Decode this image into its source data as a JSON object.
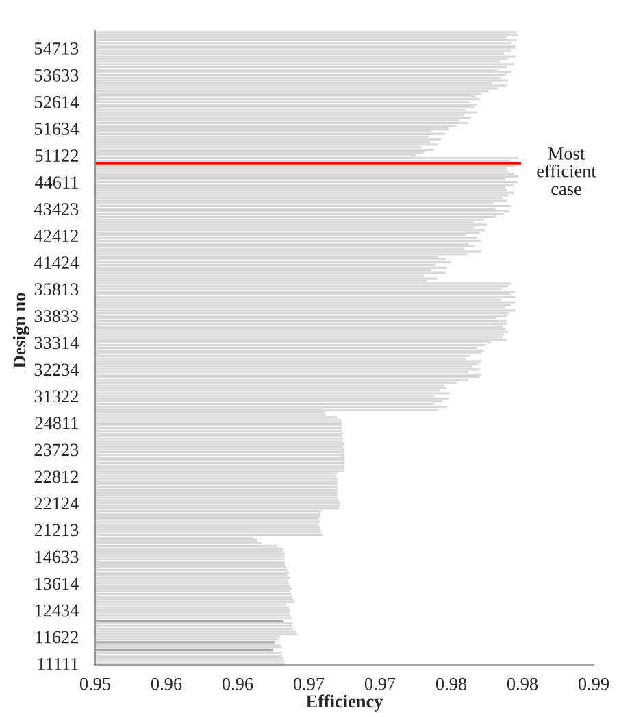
{
  "chart_data": {
    "type": "bar",
    "orientation": "horizontal",
    "xlabel": "Efficiency",
    "ylabel": "Design no",
    "categories": [
      null,
      null,
      null,
      null,
      null,
      null,
      "54713",
      null,
      null,
      null,
      null,
      null,
      null,
      null,
      null,
      null,
      "53633",
      null,
      null,
      null,
      null,
      null,
      null,
      null,
      null,
      null,
      "52614",
      null,
      null,
      null,
      null,
      null,
      null,
      null,
      null,
      null,
      "51634",
      null,
      null,
      null,
      null,
      null,
      null,
      null,
      null,
      null,
      "51122",
      null,
      null,
      null,
      null,
      null,
      null,
      null,
      null,
      null,
      "44611",
      null,
      null,
      null,
      null,
      null,
      null,
      null,
      null,
      null,
      "43423",
      null,
      null,
      null,
      null,
      null,
      null,
      null,
      null,
      null,
      "42412",
      null,
      null,
      null,
      null,
      null,
      null,
      null,
      null,
      null,
      "41424",
      null,
      null,
      null,
      null,
      null,
      null,
      null,
      null,
      null,
      "35813",
      null,
      null,
      null,
      null,
      null,
      null,
      null,
      null,
      null,
      "33833",
      null,
      null,
      null,
      null,
      null,
      null,
      null,
      null,
      null,
      "33314",
      null,
      null,
      null,
      null,
      null,
      null,
      null,
      null,
      null,
      "32234",
      null,
      null,
      null,
      null,
      null,
      null,
      null,
      null,
      null,
      "31322",
      null,
      null,
      null,
      null,
      null,
      null,
      null,
      null,
      null,
      "24811",
      null,
      null,
      null,
      null,
      null,
      null,
      null,
      null,
      null,
      "23723",
      null,
      null,
      null,
      null,
      null,
      null,
      null,
      null,
      null,
      "22812",
      null,
      null,
      null,
      null,
      null,
      null,
      null,
      null,
      null,
      "22124",
      null,
      null,
      null,
      null,
      null,
      null,
      null,
      null,
      null,
      "21213",
      null,
      null,
      null,
      null,
      null,
      null,
      null,
      null,
      null,
      "14633",
      null,
      null,
      null,
      null,
      null,
      null,
      null,
      null,
      null,
      "13614",
      null,
      null,
      null,
      null,
      null,
      null,
      null,
      null,
      null,
      "12434",
      null,
      null,
      null,
      null,
      null,
      null,
      null,
      null,
      null,
      "11622",
      null,
      null,
      null,
      null,
      null,
      null,
      null,
      null,
      null,
      "11111"
    ],
    "values": [
      0.9796,
      0.9797,
      0.9789,
      0.9796,
      0.9792,
      0.9795,
      0.9795,
      0.9792,
      0.9787,
      0.9795,
      0.979,
      0.9784,
      0.9794,
      0.9789,
      0.9783,
      0.9792,
      0.9789,
      0.9785,
      0.979,
      0.9779,
      0.9789,
      0.9783,
      0.9776,
      0.9771,
      0.9767,
      0.977,
      0.9763,
      0.9768,
      0.9766,
      0.976,
      0.9768,
      0.9759,
      0.9764,
      0.9756,
      0.9762,
      0.9754,
      0.9748,
      0.9736,
      0.9746,
      0.9734,
      0.9743,
      0.9735,
      0.9741,
      0.9729,
      0.9738,
      0.9731,
      0.9725,
      0.9797,
      0.9792,
      0.9799,
      0.9795,
      0.9789,
      0.979,
      0.9794,
      0.9797,
      0.9788,
      0.9797,
      0.9794,
      0.9788,
      0.9789,
      0.9794,
      0.979,
      0.9786,
      0.9789,
      0.978,
      0.9792,
      0.9781,
      0.9791,
      0.9787,
      0.9782,
      0.9773,
      0.9766,
      0.9775,
      0.9766,
      0.9774,
      0.977,
      0.976,
      0.9768,
      0.9771,
      0.9762,
      0.9766,
      0.9759,
      0.9771,
      0.9761,
      0.9741,
      0.9746,
      0.975,
      0.9739,
      0.9747,
      0.9736,
      0.9746,
      0.9731,
      0.974,
      0.9733,
      0.9792,
      0.979,
      0.9785,
      0.9795,
      0.9792,
      0.9795,
      0.9785,
      0.9795,
      0.9792,
      0.9788,
      0.9795,
      0.9791,
      0.9789,
      0.9782,
      0.9789,
      0.9789,
      0.9786,
      0.9788,
      0.979,
      0.9787,
      0.9786,
      0.9789,
      0.9778,
      0.9774,
      0.9768,
      0.9773,
      0.9771,
      0.9763,
      0.976,
      0.9771,
      0.9769,
      0.9765,
      0.977,
      0.9762,
      0.9771,
      0.977,
      0.9762,
      0.9754,
      0.9745,
      0.9747,
      0.9742,
      0.9749,
      0.9738,
      0.9748,
      0.9744,
      0.9738,
      0.9747,
      0.9741,
      0.9661,
      0.9662,
      0.967,
      0.9673,
      0.9673,
      0.9673,
      0.9673,
      0.9673,
      0.9674,
      0.9673,
      0.9674,
      0.9674,
      0.9675,
      0.9674,
      0.9675,
      0.9675,
      0.9675,
      0.9675,
      0.9675,
      0.9675,
      0.9675,
      0.9675,
      0.9675,
      0.967,
      0.9669,
      0.967,
      0.967,
      0.967,
      0.967,
      0.967,
      0.967,
      0.967,
      0.967,
      0.9671,
      0.9672,
      0.9672,
      0.9671,
      0.9659,
      0.9658,
      0.9658,
      0.9657,
      0.9658,
      0.9657,
      0.9658,
      0.9658,
      0.9659,
      0.966,
      0.9611,
      0.9614,
      0.9617,
      0.9628,
      0.9632,
      0.9632,
      0.9633,
      0.9633,
      0.9633,
      0.9633,
      0.9633,
      0.9634,
      0.9635,
      0.9636,
      0.9635,
      0.9637,
      0.9635,
      0.9636,
      0.9637,
      0.9638,
      0.9637,
      0.9638,
      0.9638,
      0.9639,
      0.964,
      0.9634,
      0.9636,
      0.9637,
      0.9637,
      0.9637,
      0.9638,
      0.9632,
      0.9639,
      0.9638,
      0.9639,
      0.9641,
      0.9642,
      0.963,
      0.9629,
      0.9626,
      0.963,
      0.9631,
      0.9625,
      0.9631,
      0.9631,
      0.9632,
      0.9633,
      0.9633
    ],
    "colors": [
      "#d9d9d9",
      "#d9d9d9",
      "#d9d9d9",
      "#d9d9d9",
      "#d9d9d9",
      "#d9d9d9",
      "#d9d9d9",
      "#d9d9d9",
      "#d9d9d9",
      "#d9d9d9",
      "#d9d9d9",
      "#d9d9d9",
      "#d9d9d9",
      "#d9d9d9",
      "#d9d9d9",
      "#d9d9d9",
      "#d9d9d9",
      "#d9d9d9",
      "#d9d9d9",
      "#d9d9d9",
      "#d9d9d9",
      "#d9d9d9",
      "#d9d9d9",
      "#d9d9d9",
      "#d9d9d9",
      "#d9d9d9",
      "#d9d9d9",
      "#d9d9d9",
      "#d9d9d9",
      "#d9d9d9",
      "#d9d9d9",
      "#d9d9d9",
      "#d9d9d9",
      "#d9d9d9",
      "#d9d9d9",
      "#d9d9d9",
      "#d9d9d9",
      "#d9d9d9",
      "#d9d9d9",
      "#d9d9d9",
      "#d9d9d9",
      "#d9d9d9",
      "#d9d9d9",
      "#d9d9d9",
      "#d9d9d9",
      "#d9d9d9",
      "#d9d9d9",
      "#d9d9d9",
      "#d9d9d9",
      "#ff0000",
      "#d9d9d9",
      "#d9d9d9",
      "#d9d9d9",
      "#d9d9d9",
      "#d9d9d9",
      "#d9d9d9",
      "#d9d9d9",
      "#d9d9d9",
      "#d9d9d9",
      "#d9d9d9",
      "#d9d9d9",
      "#d9d9d9",
      "#d9d9d9",
      "#d9d9d9",
      "#d9d9d9",
      "#d9d9d9",
      "#d9d9d9",
      "#d9d9d9",
      "#d9d9d9",
      "#d9d9d9",
      "#d9d9d9",
      "#d9d9d9",
      "#d9d9d9",
      "#d9d9d9",
      "#d9d9d9",
      "#d9d9d9",
      "#d9d9d9",
      "#d9d9d9",
      "#d9d9d9",
      "#d9d9d9",
      "#d9d9d9",
      "#d9d9d9",
      "#d9d9d9",
      "#d9d9d9",
      "#d9d9d9",
      "#d9d9d9",
      "#d9d9d9",
      "#d9d9d9",
      "#d9d9d9",
      "#d9d9d9",
      "#d9d9d9",
      "#d9d9d9",
      "#d9d9d9",
      "#d9d9d9",
      "#d9d9d9",
      "#d9d9d9",
      "#d9d9d9",
      "#d9d9d9",
      "#d9d9d9",
      "#d9d9d9",
      "#d9d9d9",
      "#d9d9d9",
      "#d9d9d9",
      "#d9d9d9",
      "#d9d9d9",
      "#d9d9d9",
      "#d9d9d9",
      "#d9d9d9",
      "#d9d9d9",
      "#d9d9d9",
      "#d9d9d9",
      "#d9d9d9",
      "#d9d9d9",
      "#d9d9d9",
      "#d9d9d9",
      "#d9d9d9",
      "#d9d9d9",
      "#d9d9d9",
      "#d9d9d9",
      "#d9d9d9",
      "#d9d9d9",
      "#d9d9d9",
      "#d9d9d9",
      "#d9d9d9",
      "#d9d9d9",
      "#d9d9d9",
      "#d9d9d9",
      "#d9d9d9",
      "#d9d9d9",
      "#d9d9d9",
      "#d9d9d9",
      "#d9d9d9",
      "#d9d9d9",
      "#d9d9d9",
      "#d9d9d9",
      "#d9d9d9",
      "#d9d9d9",
      "#d9d9d9",
      "#d9d9d9",
      "#d9d9d9",
      "#d9d9d9",
      "#d9d9d9",
      "#d9d9d9",
      "#d9d9d9",
      "#d9d9d9",
      "#d9d9d9",
      "#d9d9d9",
      "#d9d9d9",
      "#d9d9d9",
      "#d9d9d9",
      "#d9d9d9",
      "#d9d9d9",
      "#d9d9d9",
      "#d9d9d9",
      "#d9d9d9",
      "#d9d9d9",
      "#d9d9d9",
      "#d9d9d9",
      "#d9d9d9",
      "#d9d9d9",
      "#d9d9d9",
      "#d9d9d9",
      "#d9d9d9",
      "#d9d9d9",
      "#d9d9d9",
      "#d9d9d9",
      "#d9d9d9",
      "#d9d9d9",
      "#d9d9d9",
      "#d9d9d9",
      "#d9d9d9",
      "#d9d9d9",
      "#d9d9d9",
      "#d9d9d9",
      "#d9d9d9",
      "#d9d9d9",
      "#d9d9d9",
      "#d9d9d9",
      "#d9d9d9",
      "#d9d9d9",
      "#d9d9d9",
      "#d9d9d9",
      "#d9d9d9",
      "#d9d9d9",
      "#d9d9d9",
      "#d9d9d9",
      "#d9d9d9",
      "#d9d9d9",
      "#d9d9d9",
      "#d9d9d9",
      "#d9d9d9",
      "#d9d9d9",
      "#d9d9d9",
      "#d9d9d9",
      "#d9d9d9",
      "#d9d9d9",
      "#d9d9d9",
      "#d9d9d9",
      "#d9d9d9",
      "#d9d9d9",
      "#d9d9d9",
      "#d9d9d9",
      "#d9d9d9",
      "#d9d9d9",
      "#d9d9d9",
      "#d9d9d9",
      "#d9d9d9",
      "#d9d9d9",
      "#d9d9d9",
      "#d9d9d9",
      "#d9d9d9",
      "#d9d9d9",
      "#d9d9d9",
      "#d9d9d9",
      "#d9d9d9",
      "#d9d9d9",
      "#d9d9d9",
      "#d9d9d9",
      "#d9d9d9",
      "#d9d9d9",
      "#a5a5a5",
      "#d9d9d9",
      "#d9d9d9",
      "#d9d9d9",
      "#d9d9d9",
      "#d9d9d9",
      "#d9d9d9",
      "#d9d9d9",
      "#a5a5a5",
      "#d9d9d9",
      "#d9d9d9",
      "#a5a5a5",
      "#d9d9d9",
      "#d9d9d9",
      "#d9d9d9",
      "#d9d9d9",
      "#d9d9d9"
    ],
    "xlim": [
      0.95,
      0.985
    ],
    "xticks": [
      0.95,
      {
        "value": 0.955,
        "label": "0.96"
      },
      0.96,
      {
        "value": 0.965,
        "label": "0.97"
      },
      0.97,
      {
        "value": 0.975,
        "label": "0.98"
      },
      0.98,
      {
        "value": 0.985,
        "label": "0.99"
      }
    ],
    "annotations": [
      "Most efficient case"
    ]
  }
}
